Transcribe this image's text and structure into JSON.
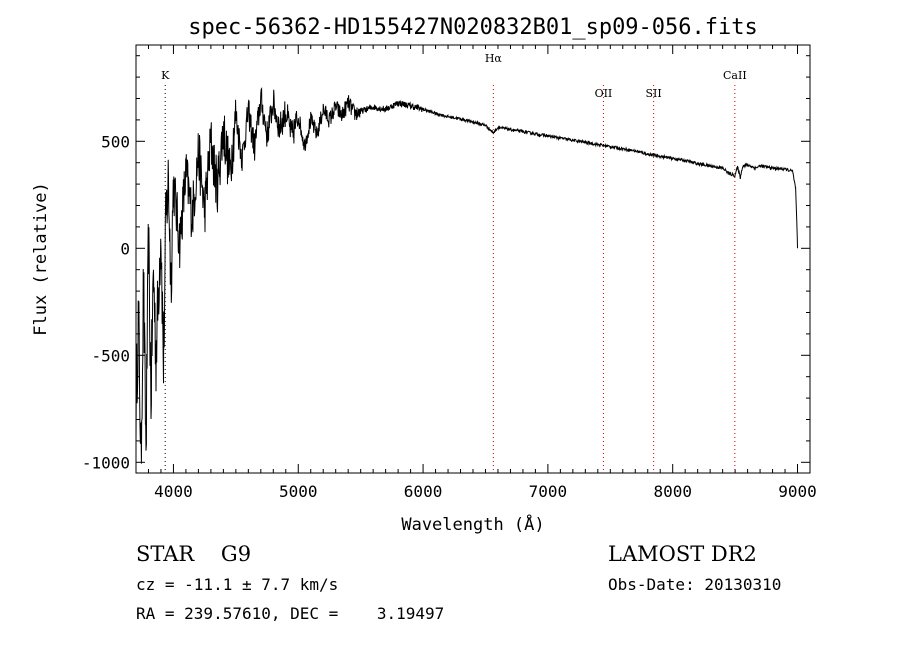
{
  "chart_data": {
    "type": "line",
    "title": "spec-56362-HD155427N020832B01_sp09-056.fits",
    "xlabel": "Wavelength (Å)",
    "ylabel": "Flux (relative)",
    "xlim": [
      3700,
      9100
    ],
    "ylim": [
      -1050,
      950
    ],
    "xticks": [
      4000,
      5000,
      6000,
      7000,
      8000,
      9000
    ],
    "yticks": [
      -1000,
      -500,
      0,
      500
    ],
    "grid": false,
    "series": [
      {
        "x": [
          3700,
          3720,
          3740,
          3760,
          3780,
          3800,
          3820,
          3840,
          3860,
          3880,
          3900,
          3920,
          3940,
          3960,
          3980,
          4000,
          4050,
          4100,
          4150,
          4200,
          4250,
          4300,
          4350,
          4400,
          4450,
          4500,
          4550,
          4600,
          4650,
          4700,
          4750,
          4800,
          4850,
          4900,
          4950,
          5000,
          5050,
          5100,
          5150,
          5200,
          5250,
          5300,
          5350,
          5400,
          5450,
          5500,
          5600,
          5700,
          5800,
          5900,
          6000,
          6100,
          6200,
          6300,
          6400,
          6500,
          6563,
          6600,
          6700,
          6800,
          6900,
          7000,
          7100,
          7200,
          7300,
          7400,
          7500,
          7600,
          7700,
          7800,
          7900,
          8000,
          8100,
          8200,
          8300,
          8400,
          8450,
          8498,
          8520,
          8542,
          8560,
          8600,
          8662,
          8700,
          8800,
          8900,
          8960,
          8985,
          8995,
          9000
        ],
        "y": [
          -750,
          -300,
          -1000,
          -150,
          -950,
          50,
          -700,
          -100,
          -500,
          -200,
          100,
          -550,
          150,
          320,
          -150,
          300,
          30,
          350,
          150,
          450,
          180,
          500,
          280,
          560,
          350,
          620,
          420,
          640,
          470,
          700,
          530,
          680,
          560,
          640,
          520,
          620,
          480,
          600,
          530,
          650,
          600,
          660,
          620,
          680,
          630,
          640,
          660,
          650,
          680,
          665,
          650,
          630,
          615,
          605,
          590,
          575,
          540,
          565,
          555,
          545,
          535,
          525,
          515,
          505,
          495,
          485,
          475,
          465,
          455,
          440,
          430,
          420,
          410,
          395,
          385,
          375,
          350,
          340,
          380,
          330,
          385,
          390,
          375,
          385,
          375,
          370,
          360,
          280,
          100,
          0
        ]
      }
    ],
    "line_markers": [
      {
        "label": "K",
        "x": 3934
      },
      {
        "label": "Hα",
        "x": 6563
      },
      {
        "label": "OII",
        "x": 7445
      },
      {
        "label": "SII",
        "x": 7847
      },
      {
        "label": "CaII",
        "x": 8498
      }
    ]
  },
  "info": {
    "object_line": "STAR    G9",
    "survey_line": "LAMOST DR2",
    "velocity_line": "cz = -11.1 ± 7.7 km/s",
    "obsdate_line": "Obs-Date: 20130310",
    "coords_line": "RA = 239.57610, DEC =    3.19497"
  }
}
